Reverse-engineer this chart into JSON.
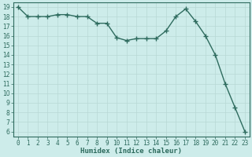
{
  "x": [
    0,
    1,
    2,
    3,
    4,
    5,
    6,
    7,
    8,
    9,
    10,
    11,
    12,
    13,
    14,
    15,
    16,
    17,
    18,
    19,
    20,
    21,
    22,
    23
  ],
  "y": [
    19,
    18,
    18,
    18,
    18.2,
    18.2,
    18,
    18,
    17.3,
    17.3,
    15.8,
    15.5,
    15.7,
    15.7,
    15.7,
    16.5,
    18,
    18.8,
    17.5,
    16,
    14,
    11,
    8.5,
    6
  ],
  "line_color": "#2e6b5e",
  "marker": "+",
  "marker_size": 4,
  "marker_lw": 1.0,
  "bg_color": "#cdecea",
  "grid_color": "#b8d8d5",
  "xlabel": "Humidex (Indice chaleur)",
  "ylim": [
    5.5,
    19.5
  ],
  "xlim": [
    -0.5,
    23.5
  ],
  "yticks": [
    6,
    7,
    8,
    9,
    10,
    11,
    12,
    13,
    14,
    15,
    16,
    17,
    18,
    19
  ],
  "xticks": [
    0,
    1,
    2,
    3,
    4,
    5,
    6,
    7,
    8,
    9,
    10,
    11,
    12,
    13,
    14,
    15,
    16,
    17,
    18,
    19,
    20,
    21,
    22,
    23
  ],
  "xlabel_fontsize": 6.5,
  "tick_fontsize": 5.5,
  "linewidth": 1.0
}
